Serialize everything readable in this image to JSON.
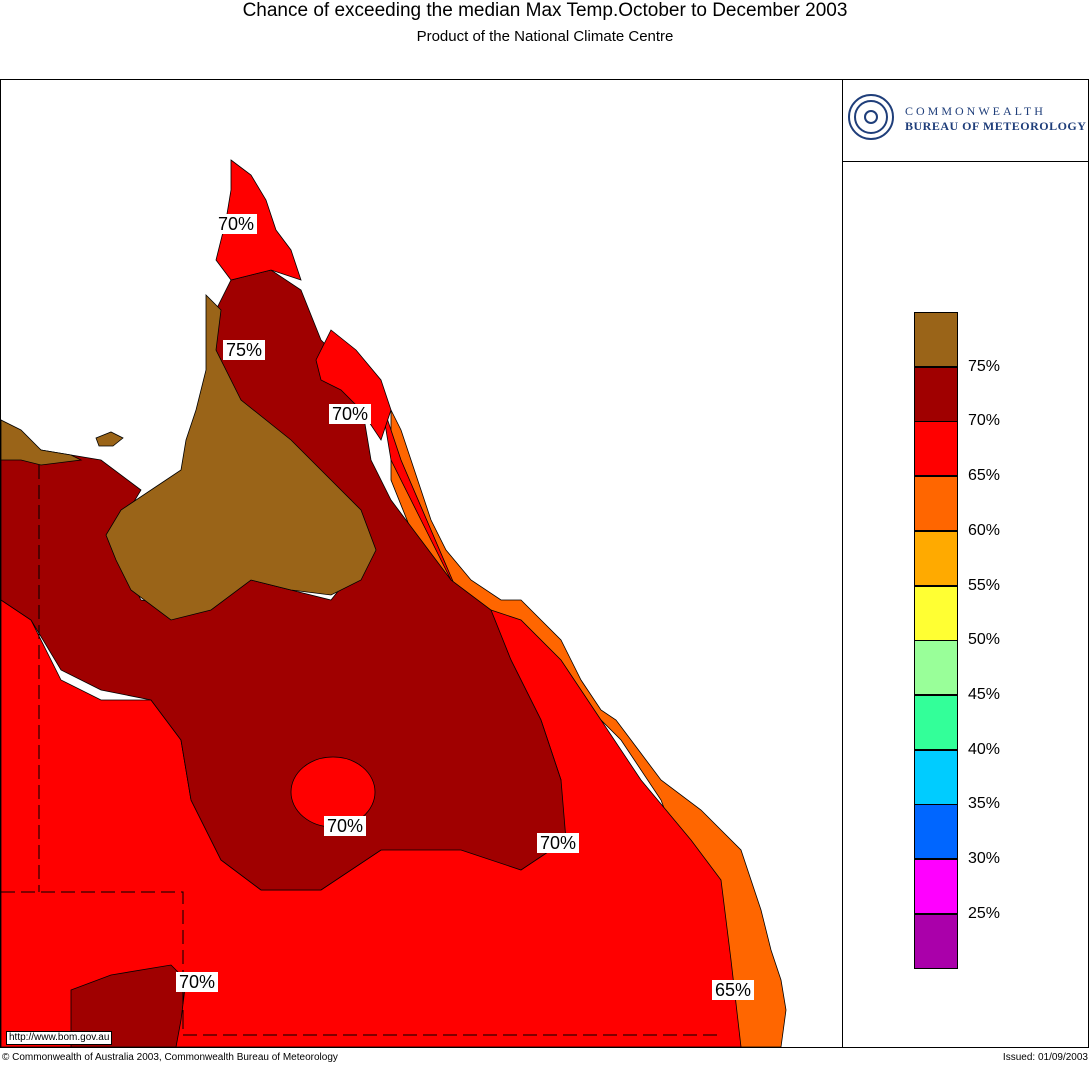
{
  "header": {
    "title": "Chance of exceeding the median Max Temp.October to December 2003",
    "subtitle": "Product of the National Climate Centre"
  },
  "logo": {
    "line1": "COMMONWEALTH",
    "line2": "BUREAU OF METEOROLOGY",
    "icon": "bom-swirl-logo",
    "color": "#1f3e7a"
  },
  "legend": {
    "swatches": [
      {
        "color": "#9a6418"
      },
      {
        "color": "#a00000"
      },
      {
        "color": "#ff0000"
      },
      {
        "color": "#ff6600"
      },
      {
        "color": "#ffaa00"
      },
      {
        "color": "#ffff33"
      },
      {
        "color": "#99ff99"
      },
      {
        "color": "#33ff99"
      },
      {
        "color": "#00ccff"
      },
      {
        "color": "#0066ff"
      },
      {
        "color": "#ff00ff"
      },
      {
        "color": "#aa00aa"
      }
    ],
    "labels": [
      "75%",
      "70%",
      "65%",
      "60%",
      "55%",
      "50%",
      "45%",
      "40%",
      "35%",
      "30%",
      "25%"
    ]
  },
  "map": {
    "region": "Queensland",
    "labels": [
      "70%",
      "75%",
      "70%",
      "70%",
      "70%",
      "70%",
      "65%"
    ],
    "url": "http://www.bom.gov.au"
  },
  "footer": {
    "copyright": "© Commonwealth of Australia 2003, Commonwealth Bureau of Meteorology",
    "issued": "Issued: 01/09/2003"
  }
}
